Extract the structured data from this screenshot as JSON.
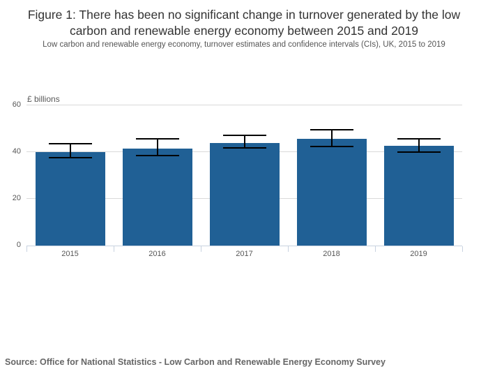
{
  "header": {
    "title": "Figure 1: There has been no significant change in turnover generated by the low carbon and renewable energy economy between 2015 and 2019",
    "subtitle": "Low carbon and renewable energy economy, turnover estimates and confidence intervals (CIs), UK, 2015 to 2019"
  },
  "chart_data": {
    "type": "bar",
    "title": "Figure 1: There has been no significant change in turnover generated by the low carbon and renewable energy economy between 2015 and 2019",
    "subtitle": "Low carbon and renewable energy economy, turnover estimates and confidence intervals (CIs), UK, 2015 to 2019",
    "unit_label": "£ billions",
    "xlabel": "",
    "ylabel": "£ billions",
    "categories": [
      "2015",
      "2016",
      "2017",
      "2018",
      "2019"
    ],
    "series": [
      {
        "name": "Turnover",
        "values": [
          39.9,
          41.4,
          44.0,
          45.7,
          42.6
        ]
      }
    ],
    "error_bars": {
      "lower": [
        37.6,
        38.4,
        41.7,
        42.5,
        40.1
      ],
      "upper": [
        43.6,
        45.6,
        47.2,
        49.5,
        45.6
      ]
    },
    "ylim": [
      0,
      60
    ],
    "yticks": [
      0,
      20,
      40,
      60
    ],
    "grid": true,
    "legend": "none",
    "colors": {
      "bar": "#206095",
      "error_bar": "#000000",
      "grid": "#d9d9d9",
      "axis": "#c8d2e0"
    }
  },
  "footer": {
    "source": "Source: Office for National Statistics - Low Carbon and Renewable Energy Economy Survey"
  }
}
